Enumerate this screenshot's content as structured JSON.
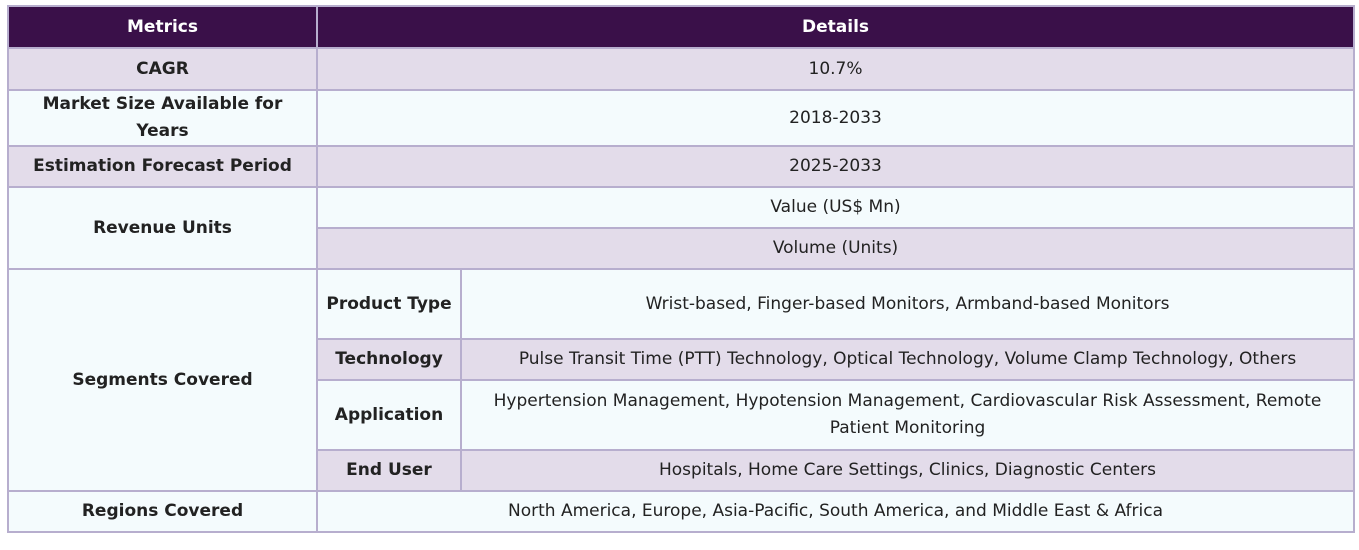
{
  "header": {
    "metrics": "Metrics",
    "details": "Details"
  },
  "rows": {
    "cagr": {
      "label": "CAGR",
      "value": "10.7%"
    },
    "market_size": {
      "label": "Market Size Available for Years",
      "value": "2018-2033"
    },
    "forecast": {
      "label": "Estimation Forecast Period",
      "value": "2025-2033"
    },
    "revenue": {
      "label": "Revenue Units",
      "values": [
        "Value (US$ Mn)",
        "Volume (Units)"
      ]
    },
    "segments": {
      "label": "Segments Covered",
      "items": [
        {
          "name": "Product Type",
          "value": "Wrist-based, Finger-based Monitors, Armband-based Monitors"
        },
        {
          "name": "Technology",
          "value": "Pulse Transit Time (PTT) Technology, Optical Technology, Volume Clamp Technology, Others"
        },
        {
          "name": "Application",
          "value": "Hypertension Management, Hypotension Management, Cardiovascular Risk Assessment, Remote Patient Monitoring"
        },
        {
          "name": "End User",
          "value": "Hospitals, Home Care Settings, Clinics, Diagnostic Centers"
        }
      ]
    },
    "regions": {
      "label": "Regions Covered",
      "value": "North America, Europe, Asia-Pacific, South America, and Middle East & Africa"
    }
  },
  "colors": {
    "header_bg": "#3a1049",
    "row_purple": "#e3dcea",
    "row_white": "#f4fbfd",
    "border": "#b7aece"
  }
}
